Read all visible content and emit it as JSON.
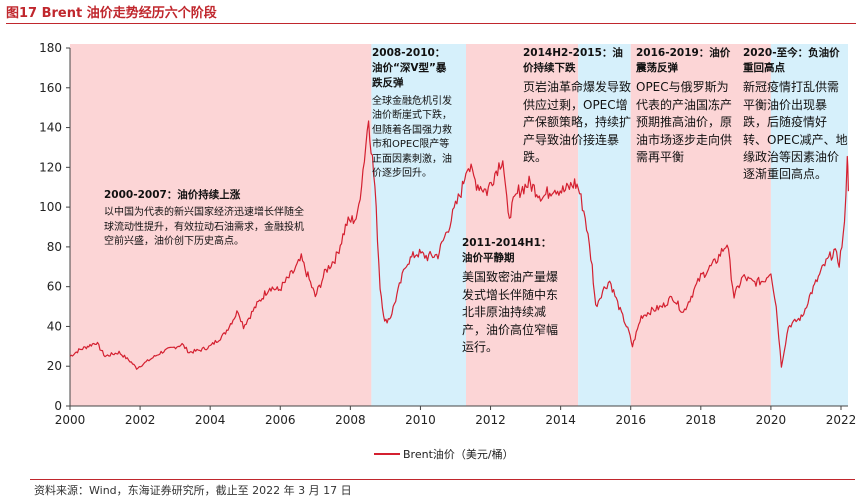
{
  "figure_title": "图17  Brent 油价走势经历六个阶段",
  "source_note": "资料来源：Wind，东海证券研究所，截止至 2022 年 3 月 17 日",
  "colors": {
    "title": "#c0272d",
    "line": "#d42030",
    "pink_band": "#fcd5d6",
    "blue_band": "#d6f0fb"
  },
  "chart_data": {
    "type": "line",
    "title": "Brent 油价走势经历六个阶段",
    "xlabel": "",
    "ylabel": "",
    "xlim": [
      2000,
      2022.2
    ],
    "ylim": [
      0,
      180
    ],
    "x_ticks": [
      "2000",
      "2002",
      "2004",
      "2006",
      "2008",
      "2010",
      "2012",
      "2014",
      "2016",
      "2018",
      "2020",
      "2022"
    ],
    "y_ticks": [
      "0",
      "20",
      "40",
      "60",
      "80",
      "100",
      "120",
      "140",
      "160",
      "180"
    ],
    "legend": "Brent油价（美元/桶）",
    "series": [
      {
        "name": "Brent油价（美元/桶）",
        "x": [
          2000.0,
          2000.25,
          2000.5,
          2000.75,
          2001.0,
          2001.4,
          2001.75,
          2001.9,
          2002.25,
          2002.6,
          2002.9,
          2003.2,
          2003.4,
          2003.7,
          2004.0,
          2004.4,
          2004.8,
          2004.95,
          2005.3,
          2005.7,
          2005.95,
          2006.4,
          2006.6,
          2006.9,
          2007.0,
          2007.3,
          2007.6,
          2007.9,
          2008.2,
          2008.4,
          2008.52,
          2008.7,
          2008.85,
          2008.98,
          2009.15,
          2009.4,
          2009.6,
          2009.9,
          2010.2,
          2010.5,
          2010.8,
          2011.0,
          2011.2,
          2011.33,
          2011.6,
          2011.9,
          2012.2,
          2012.35,
          2012.5,
          2012.8,
          2013.1,
          2013.5,
          2013.8,
          2014.1,
          2014.4,
          2014.5,
          2014.7,
          2014.9,
          2015.0,
          2015.2,
          2015.4,
          2015.7,
          2015.95,
          2016.05,
          2016.3,
          2016.6,
          2016.9,
          2017.2,
          2017.5,
          2017.8,
          2018.0,
          2018.4,
          2018.75,
          2018.95,
          2019.2,
          2019.5,
          2019.8,
          2020.0,
          2020.15,
          2020.3,
          2020.5,
          2020.9,
          2021.1,
          2021.5,
          2021.8,
          2021.95,
          2022.1,
          2022.18,
          2022.21
        ],
        "values": [
          25,
          28,
          30,
          32,
          25,
          27,
          22,
          19,
          23,
          27,
          29,
          31,
          27,
          28,
          30,
          36,
          48,
          40,
          50,
          60,
          58,
          68,
          74,
          60,
          55,
          68,
          75,
          92,
          95,
          125,
          145,
          110,
          60,
          42,
          45,
          60,
          72,
          77,
          75,
          76,
          90,
          100,
          110,
          122,
          112,
          108,
          120,
          125,
          95,
          108,
          112,
          105,
          110,
          108,
          112,
          110,
          95,
          70,
          50,
          58,
          63,
          48,
          37,
          30,
          45,
          48,
          50,
          55,
          47,
          58,
          65,
          72,
          82,
          55,
          65,
          62,
          63,
          68,
          50,
          20,
          40,
          45,
          55,
          70,
          78,
          72,
          90,
          128,
          108
        ]
      }
    ]
  },
  "annotations": [
    {
      "heading": "2000-2007：油价持续上涨",
      "body": "以中国为代表的新兴国家经济迅速增长伴随全球流动性提升，有效拉动石油需求，金融投机空前兴盛，油价创下历史高点。"
    },
    {
      "heading": "2008-2010：油价“深V型”暴跌反弹",
      "body": "全球金融危机引发油价断崖式下跌，但随着各国强力救市和OPEC限产等正面因素刺激，油价逐步回升。"
    },
    {
      "heading": "2011-2014H1：油价平静期",
      "body": "美国致密油产量爆发式增长伴随中东北非原油持续减产，油价高位窄幅运行。"
    },
    {
      "heading": "2014H2-2015：油价持续下跌",
      "body": "页岩油革命爆发导致供应过剩，OPEC增产保额策略，持续扩产导致油价接连暴跌。"
    },
    {
      "heading": "2016-2019：油价震荡反弹",
      "body": "OPEC与俄罗斯为代表的产油国冻产预期推高油价，原油市场逐步走向供需再平衡"
    },
    {
      "heading": "2020-至今：负油价重回高点",
      "body": "新冠疫情打乱供需平衡油价出现暴跌，后随疫情好转、OPEC减产、地缘政治等因素油价逐渐重回高点。"
    }
  ]
}
